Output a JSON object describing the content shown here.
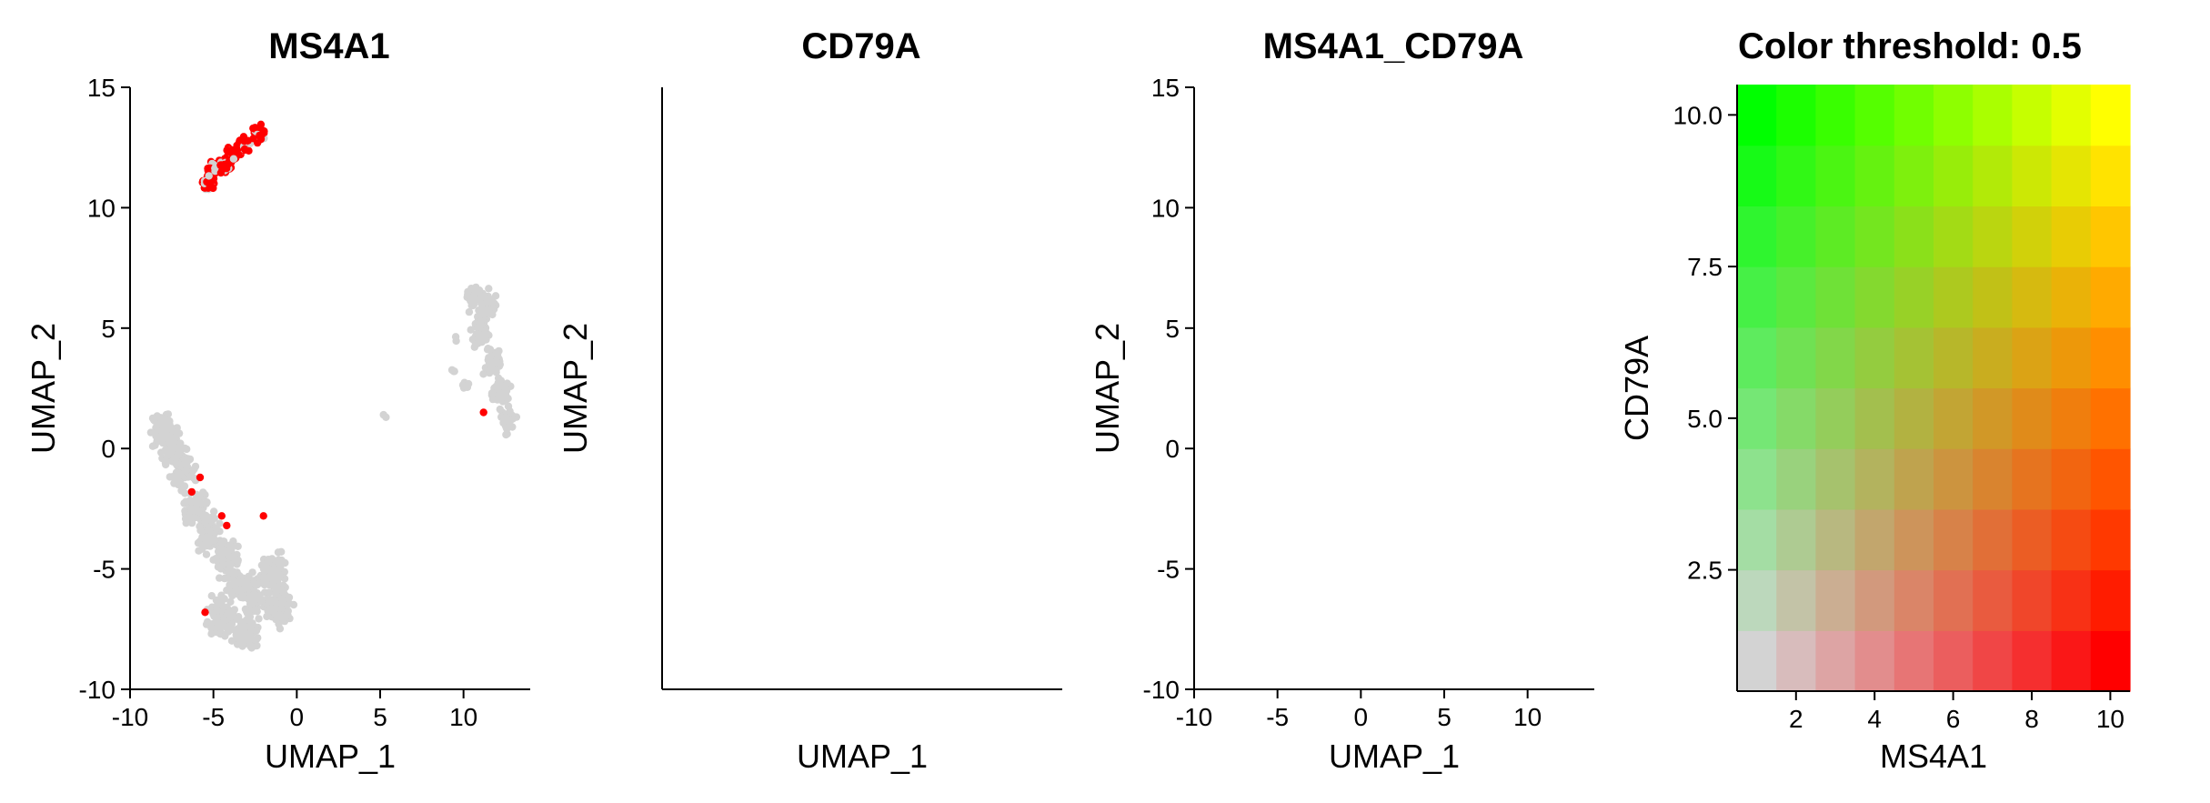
{
  "chart_data": [
    {
      "type": "scatter",
      "title": "MS4A1",
      "xlabel": "UMAP_1",
      "ylabel": "UMAP_2",
      "xlim": [
        -10,
        14
      ],
      "ylim": [
        -10,
        15
      ],
      "xticks": [
        "-10",
        "-5",
        "0",
        "5",
        "10"
      ],
      "yticks": [
        "-10",
        "-5",
        "0",
        "5",
        "10",
        "15"
      ],
      "background_color": "#d3d3d3",
      "highlight_color": "#ff0000",
      "highlight": "MS4A1"
    },
    {
      "type": "scatter",
      "title": "CD79A",
      "xlabel": "UMAP_1",
      "ylabel": "UMAP_2",
      "xlim": [
        -10,
        14
      ],
      "ylim": [
        -10,
        15
      ],
      "xticks": [
        "-10",
        "-5",
        "0",
        "5",
        "10"
      ],
      "yticks": [
        "-10",
        "-5",
        "0",
        "5",
        "10",
        "15"
      ],
      "background_color": "#d3d3d3",
      "highlight_color": "#00ff00",
      "highlight": "CD79A"
    },
    {
      "type": "scatter",
      "title": "MS4A1_CD79A",
      "xlabel": "UMAP_1",
      "ylabel": "UMAP_2",
      "xlim": [
        -10,
        14
      ],
      "ylim": [
        -10,
        15
      ],
      "xticks": [
        "-10",
        "-5",
        "0",
        "5",
        "10"
      ],
      "yticks": [
        "-10",
        "-5",
        "0",
        "5",
        "10",
        "15"
      ],
      "background_color": "#d3d3d3",
      "highlight_colors": [
        "#ff0000",
        "#00ff00",
        "#ffff00"
      ],
      "highlight": "blend"
    },
    {
      "type": "heatmap",
      "title": "Color threshold: 0.5",
      "xlabel": "MS4A1",
      "ylabel": "CD79A",
      "xlim": [
        0.5,
        10.5
      ],
      "ylim": [
        0.5,
        10.5
      ],
      "xticks": [
        "2",
        "4",
        "6",
        "8",
        "10"
      ],
      "yticks": [
        "2.5",
        "5.0",
        "7.5",
        "10.0"
      ],
      "grid_size": [
        10,
        10
      ],
      "corner_colors": {
        "low_low": "#d3d3d3",
        "high_x": "#ff0000",
        "high_y": "#00ff00",
        "high_both": "#ffff00"
      }
    }
  ],
  "clusters": {
    "b_cells": [
      [
        -5.3,
        11.0
      ],
      [
        -4.3,
        11.8
      ],
      [
        -3.2,
        12.6
      ],
      [
        -2.3,
        13.1
      ],
      [
        -5.0,
        11.6
      ],
      [
        -3.8,
        12.2
      ]
    ],
    "myeloid_upper": [
      [
        10.6,
        6.4
      ],
      [
        11.4,
        6.0
      ],
      [
        11.0,
        4.8
      ],
      [
        11.8,
        3.6
      ],
      [
        12.2,
        2.4
      ],
      [
        12.6,
        1.2
      ]
    ],
    "myeloid_stray": [
      [
        9.6,
        4.6
      ],
      [
        9.4,
        3.2
      ],
      [
        10.2,
        2.6
      ]
    ],
    "t_cells": [
      [
        -8.0,
        0.8
      ],
      [
        -7.4,
        0.0
      ],
      [
        -6.8,
        -1.0
      ],
      [
        -6.0,
        -2.4
      ],
      [
        -5.2,
        -3.6
      ],
      [
        -4.2,
        -4.6
      ],
      [
        -3.4,
        -5.6
      ],
      [
        -2.6,
        -6.2
      ],
      [
        -4.6,
        -7.0
      ],
      [
        -3.0,
        -7.6
      ],
      [
        -1.4,
        -5.2
      ],
      [
        -1.0,
        -6.6
      ]
    ],
    "small_dot": [
      5.2,
      1.4
    ],
    "red_spots": [
      [
        -5.8,
        -1.2
      ],
      [
        -6.3,
        -1.8
      ],
      [
        -4.5,
        -2.8
      ],
      [
        -4.2,
        -3.2
      ],
      [
        -2.0,
        -2.8
      ],
      [
        -5.5,
        -6.8
      ],
      [
        11.2,
        1.5
      ]
    ]
  }
}
